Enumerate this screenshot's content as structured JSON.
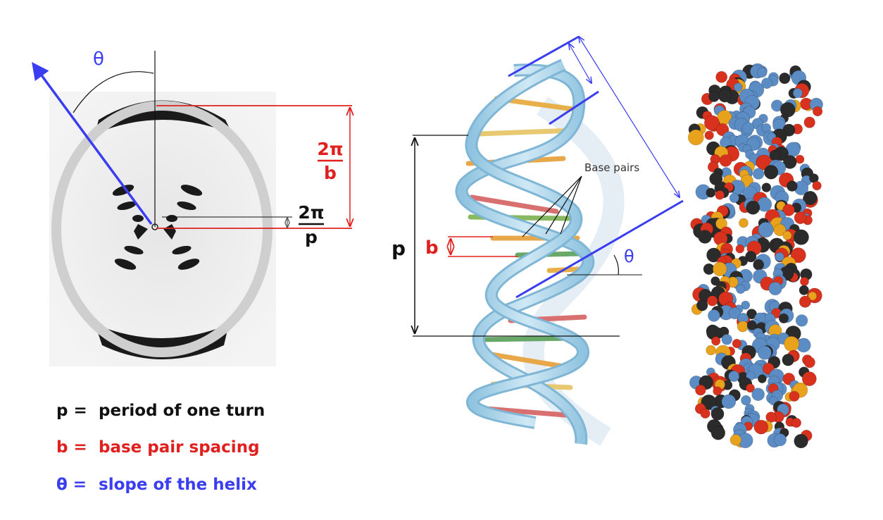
{
  "colors": {
    "red": "#e0201e",
    "blue": "#3a3df0",
    "black": "#111111",
    "helix_ribbon": "#a9d3ea",
    "space_fill_blue": "#5b8cc4",
    "space_fill_red": "#d8321e",
    "space_fill_black": "#2b2b2b",
    "space_fill_orange": "#e8a21c"
  },
  "xray": {
    "theta_label": "θ",
    "two_pi_over_b": {
      "numerator": "2π",
      "denominator": "b"
    },
    "two_pi_over_p": {
      "numerator": "2π",
      "denominator": "p"
    }
  },
  "helix": {
    "p_label": "p",
    "b_label": "b",
    "theta_label": "θ",
    "base_pairs_label": "Base pairs"
  },
  "legend": [
    {
      "symbol": "p =",
      "text": "period of one turn",
      "color": "#111111"
    },
    {
      "symbol": "b =",
      "text": "base pair spacing",
      "color": "#e0201e"
    },
    {
      "symbol": "θ =",
      "text": "slope of the helix",
      "color": "#3a3df0"
    }
  ]
}
